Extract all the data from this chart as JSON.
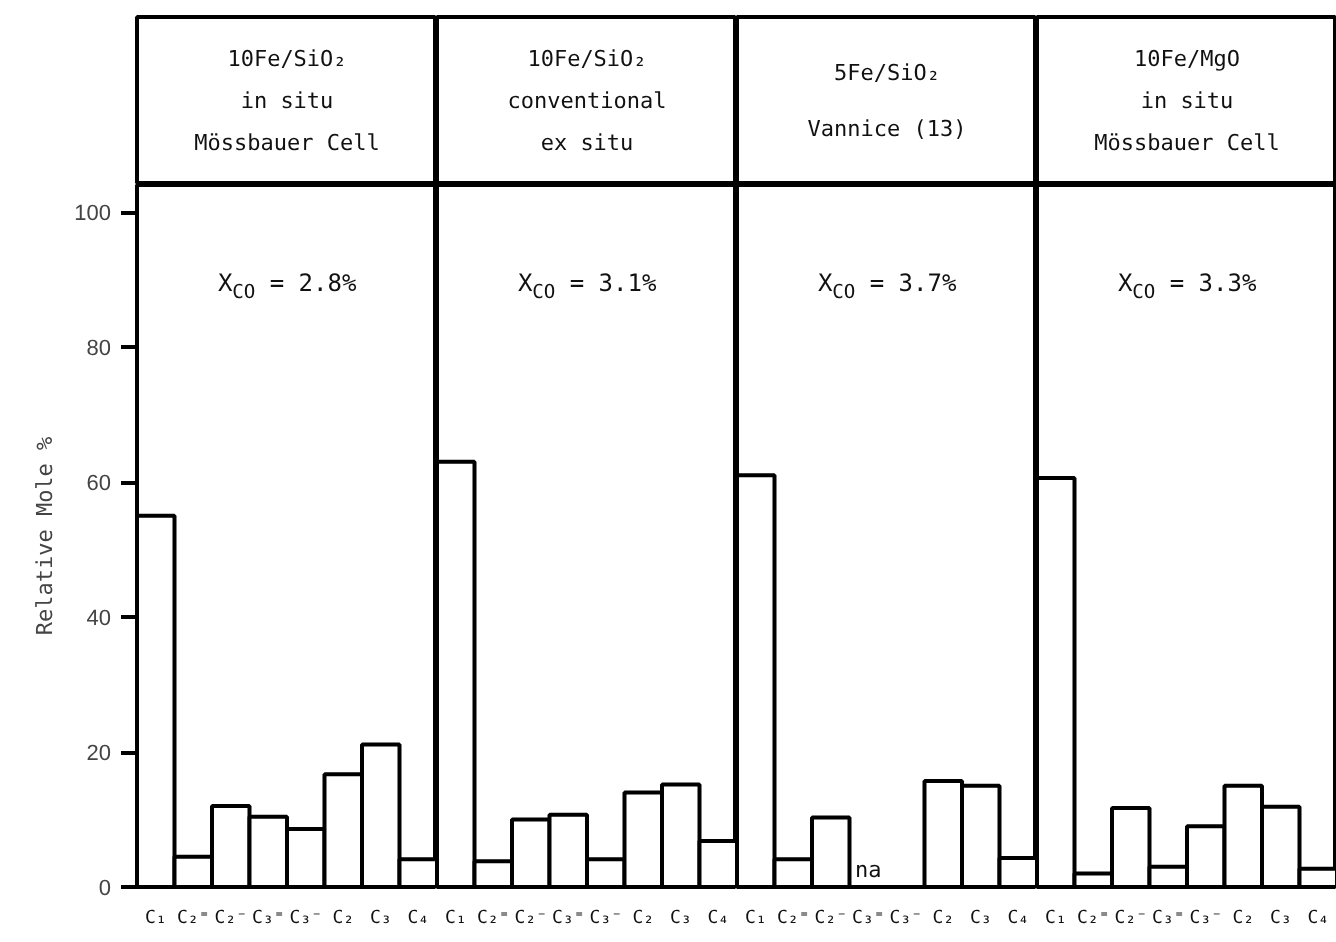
{
  "chart_data": [
    {
      "type": "bar",
      "title": "10Fe/SiO₂",
      "subtitle": "in situ\nMössbauer Cell",
      "ylabel": "Relative Mole %",
      "categories": [
        "C₁",
        "C₂⁼",
        "C₂⁻",
        "C₃⁼",
        "C₃⁻",
        "C₂",
        "C₃",
        "C₄"
      ],
      "values": [
        55,
        4.5,
        12,
        10.4,
        8.6,
        16.7,
        21.1,
        4.1
      ],
      "color": "#ffffff",
      "ylim": [
        0,
        104
      ],
      "yticks": [
        0,
        20,
        40,
        60,
        80,
        100
      ],
      "grid": false,
      "annotations": [
        "X$_{CO}$ = 2.8%"
      ]
    },
    {
      "type": "bar",
      "title": "10Fe/SiO₂",
      "subtitle": "conventional\nex situ",
      "categories": [
        "C₁",
        "C₂⁼",
        "C₂⁻",
        "C₃⁼",
        "C₃⁻",
        "C₂",
        "C₃",
        "C₄"
      ],
      "values": [
        63,
        3.8,
        10,
        10.7,
        4.1,
        14,
        15.2,
        6.8
      ],
      "color": "#ffffff",
      "ylim": [
        0,
        104
      ],
      "yticks": [
        0,
        20,
        40,
        60,
        80,
        100
      ],
      "grid": false,
      "tick_labels": "x",
      "annotations": [
        "X$_{CO}$ = 3.1%"
      ]
    },
    {
      "type": "bar",
      "title": "5Fe/SiO₂",
      "subtitle": "Vannice (13)",
      "categories": [
        "C₁",
        "C₂⁼",
        "C₂⁻",
        "C₃⁼",
        "C₃⁻",
        "C₂",
        "C₃",
        "C₄"
      ],
      "values": [
        61,
        4.1,
        10.3,
        null,
        null,
        15.7,
        15,
        4.3
      ],
      "color": "#ffffff",
      "ylim": [
        0,
        104
      ],
      "yticks": [
        0,
        20,
        40,
        60,
        80,
        100
      ],
      "grid": false,
      "tick_labels": "x",
      "annotations": [
        "X$_{CO}$ = 3.7%",
        "na"
      ]
    },
    {
      "type": "bar",
      "title": "10Fe/MgO",
      "subtitle": "in situ\nMössbauer Cell",
      "categories": [
        "C₁",
        "C₂⁼",
        "C₂⁻",
        "C₃⁼",
        "C₃⁻",
        "C₂",
        "C₃",
        "C₄"
      ],
      "values": [
        60.6,
        2,
        11.7,
        3,
        9,
        15,
        11.9,
        2.7
      ],
      "color": "#ffffff",
      "ylim": [
        0,
        104
      ],
      "yticks": [
        0,
        20,
        40,
        60,
        80,
        100
      ],
      "grid": false,
      "tick_labels": "x",
      "annotations": [
        "X$_{CO}$ = 3.3%"
      ]
    }
  ]
}
